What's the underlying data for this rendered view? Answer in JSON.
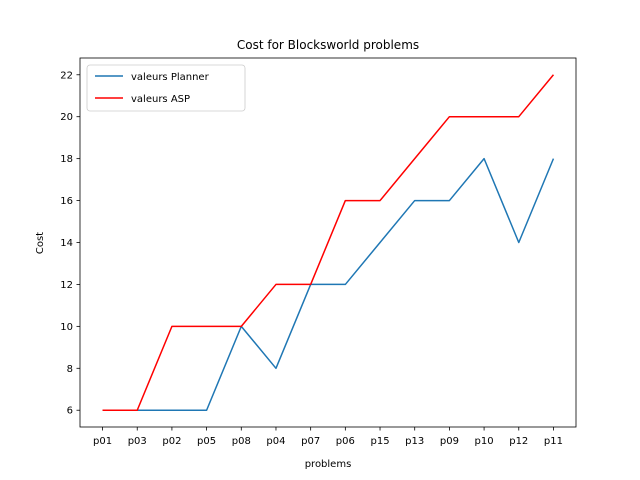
{
  "chart_data": {
    "type": "line",
    "title": "Cost for Blocksworld problems",
    "xlabel": "problems",
    "ylabel": "Cost",
    "categories": [
      "p01",
      "p03",
      "p02",
      "p05",
      "p08",
      "p04",
      "p07",
      "p06",
      "p15",
      "p13",
      "p09",
      "p10",
      "p12",
      "p11"
    ],
    "ylim": [
      5.2,
      22.8
    ],
    "yticks": [
      6,
      8,
      10,
      12,
      14,
      16,
      18,
      20,
      22
    ],
    "grid": false,
    "legend_placement": "top-left",
    "series": [
      {
        "name": "valeurs Planner",
        "color": "#1f77b4",
        "values": [
          6,
          6,
          6,
          6,
          10,
          8,
          12,
          12,
          14,
          16,
          16,
          18,
          14,
          18
        ]
      },
      {
        "name": "valeurs ASP",
        "color": "#ff0000",
        "values": [
          6,
          6,
          10,
          10,
          10,
          12,
          12,
          16,
          16,
          18,
          20,
          20,
          20,
          22
        ]
      }
    ]
  }
}
